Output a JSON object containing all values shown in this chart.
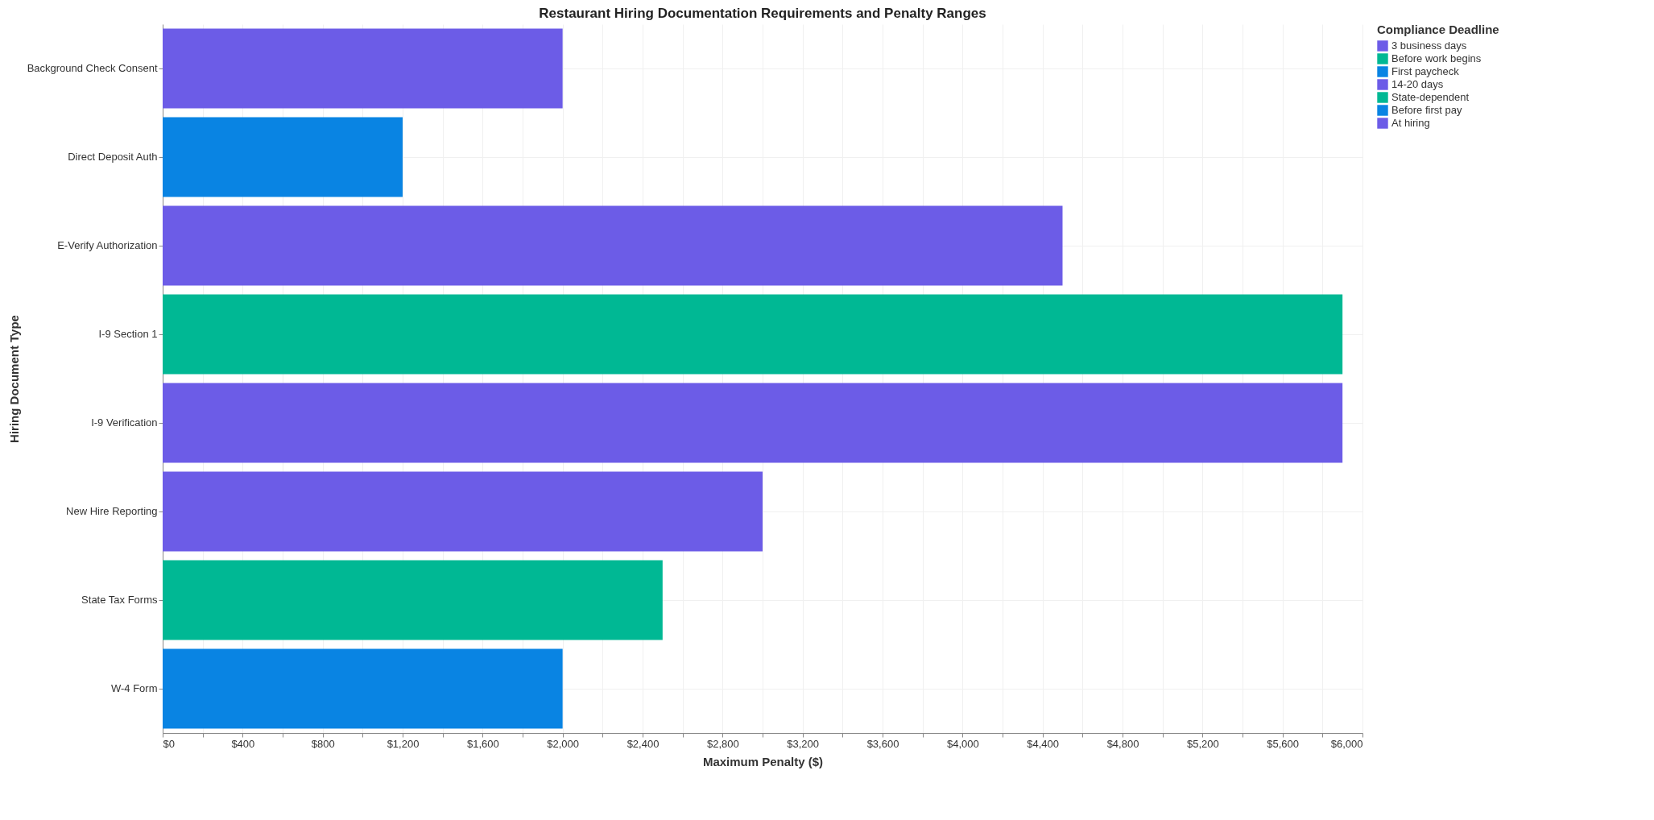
{
  "chart_data": {
    "type": "bar",
    "orientation": "horizontal",
    "title": "Restaurant Hiring Documentation Requirements and Penalty Ranges",
    "xlabel": "Maximum Penalty ($)",
    "ylabel": "Hiring Document Type",
    "legend_title": "Compliance Deadline",
    "legend": "top right",
    "grid": true,
    "categories": [
      "Background Check Consent",
      "Direct Deposit Auth",
      "E-Verify Authorization",
      "I-9 Section 1",
      "I-9 Verification",
      "New Hire Reporting",
      "State Tax Forms",
      "W-4 Form"
    ],
    "xlim": [
      0,
      6000
    ],
    "xticks": [
      {
        "value": 0,
        "label": "$0"
      },
      {
        "value": 200,
        "label": null
      },
      {
        "value": 400,
        "label": "$400"
      },
      {
        "value": 600,
        "label": null
      },
      {
        "value": 800,
        "label": "$800"
      },
      {
        "value": 1000,
        "label": null
      },
      {
        "value": 1200,
        "label": "$1,200"
      },
      {
        "value": 1400,
        "label": null
      },
      {
        "value": 1600,
        "label": "$1,600"
      },
      {
        "value": 1800,
        "label": null
      },
      {
        "value": 2000,
        "label": "$2,000"
      },
      {
        "value": 2200,
        "label": null
      },
      {
        "value": 2400,
        "label": "$2,400"
      },
      {
        "value": 2600,
        "label": null
      },
      {
        "value": 2800,
        "label": "$2,800"
      },
      {
        "value": 3000,
        "label": null
      },
      {
        "value": 3200,
        "label": "$3,200"
      },
      {
        "value": 3400,
        "label": null
      },
      {
        "value": 3600,
        "label": "$3,600"
      },
      {
        "value": 3800,
        "label": null
      },
      {
        "value": 4000,
        "label": "$4,000"
      },
      {
        "value": 4200,
        "label": null
      },
      {
        "value": 4400,
        "label": "$4,400"
      },
      {
        "value": 4600,
        "label": null
      },
      {
        "value": 4800,
        "label": "$4,800"
      },
      {
        "value": 5000,
        "label": null
      },
      {
        "value": 5200,
        "label": "$5,200"
      },
      {
        "value": 5400,
        "label": null
      },
      {
        "value": 5600,
        "label": "$5,600"
      },
      {
        "value": 5800,
        "label": null
      },
      {
        "value": 6000,
        "label": "$6,000"
      }
    ],
    "series": [
      {
        "name": "3 business days",
        "color": "#6c5ce7",
        "values": [
          null,
          null,
          null,
          null,
          5900,
          null,
          null,
          null
        ]
      },
      {
        "name": "Before work begins",
        "color": "#00b894",
        "values": [
          null,
          null,
          null,
          5900,
          null,
          null,
          null,
          null
        ]
      },
      {
        "name": "First paycheck",
        "color": "#0984e3",
        "values": [
          null,
          null,
          null,
          null,
          null,
          null,
          null,
          2000
        ]
      },
      {
        "name": "14-20 days",
        "color": "#6c5ce7",
        "values": [
          null,
          null,
          null,
          null,
          null,
          3000,
          null,
          null
        ]
      },
      {
        "name": "State-dependent",
        "color": "#00b894",
        "values": [
          null,
          null,
          null,
          null,
          null,
          null,
          2500,
          null
        ]
      },
      {
        "name": "Before first pay",
        "color": "#0984e3",
        "values": [
          null,
          1200,
          null,
          null,
          null,
          null,
          null,
          null
        ]
      },
      {
        "name": "At hiring",
        "color": "#6c5ce7",
        "values": [
          2000,
          null,
          4500,
          null,
          null,
          null,
          null,
          null
        ]
      }
    ]
  }
}
